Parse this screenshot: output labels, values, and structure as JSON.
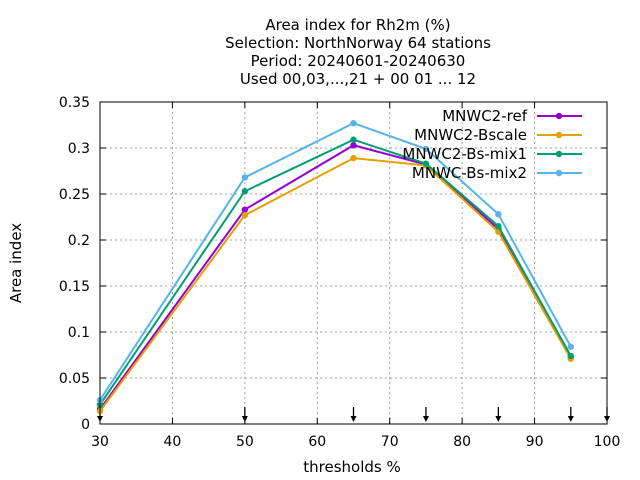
{
  "chart_data": {
    "type": "line",
    "title_lines": [
      "Area index  for Rh2m (%)",
      "Selection: NorthNorway     64 stations",
      "Period: 20240601-20240630",
      "Used 00,03,...,21 + 00 01 ... 12"
    ],
    "xlabel": "thresholds %",
    "ylabel": "Area index",
    "xlim": [
      30,
      100
    ],
    "ylim": [
      0,
      0.35
    ],
    "xticks": [
      30,
      40,
      50,
      60,
      70,
      80,
      90,
      100
    ],
    "xtick_labels": [
      "30",
      "40",
      "50",
      "60",
      "70",
      "80",
      "90",
      "100"
    ],
    "yticks": [
      0,
      0.05,
      0.1,
      0.15,
      0.2,
      0.25,
      0.3,
      0.35
    ],
    "ytick_labels": [
      "0",
      "0.05",
      "0.1",
      "0.15",
      "0.2",
      "0.25",
      "0.3",
      "0.35"
    ],
    "grid": true,
    "legend_position": "top-right",
    "threshold_markers": [
      30,
      50,
      65,
      75,
      85,
      95,
      100
    ],
    "x": [
      30,
      50,
      65,
      75,
      85,
      95
    ],
    "series": [
      {
        "name": "MNWC2-ref",
        "color": "#9400d3",
        "values": [
          0.016,
          0.233,
          0.303,
          0.282,
          0.212,
          0.073
        ]
      },
      {
        "name": "MNWC2-Bscale",
        "color": "#e69f00",
        "values": [
          0.014,
          0.227,
          0.289,
          0.281,
          0.209,
          0.071
        ]
      },
      {
        "name": "MNWC2-Bs-mix1",
        "color": "#009e73",
        "values": [
          0.021,
          0.253,
          0.309,
          0.283,
          0.215,
          0.074
        ]
      },
      {
        "name": "MNWC-Bs-mix2",
        "color": "#56b4e9",
        "values": [
          0.026,
          0.268,
          0.327,
          0.299,
          0.228,
          0.084
        ]
      }
    ]
  }
}
